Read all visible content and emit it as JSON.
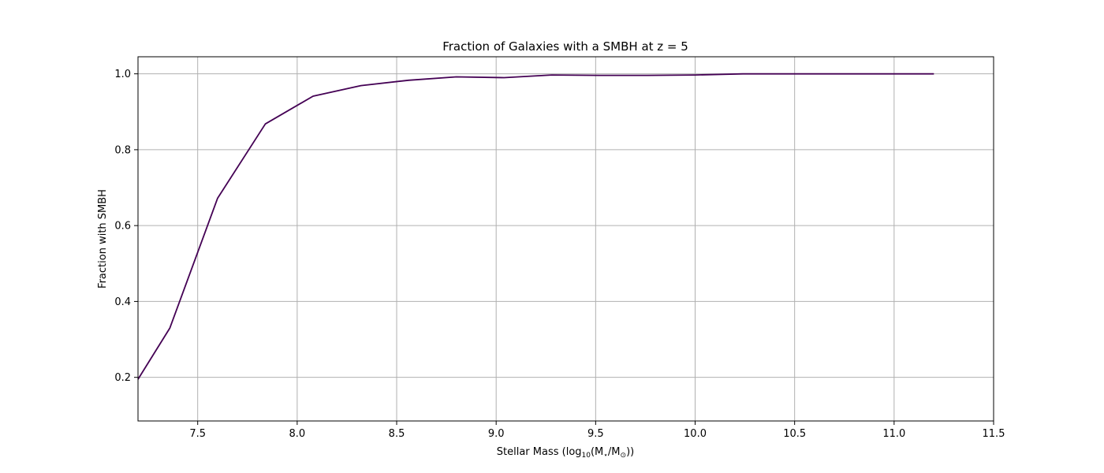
{
  "chart_data": {
    "type": "line",
    "title": "Fraction of Galaxies with a SMBH at z = 5",
    "xlabel": {
      "prefix": "Stellar Mass (log",
      "sub": "10",
      "mid": "(M",
      "star_sub": "⋆",
      "slash": "/M",
      "sun_sub": "⊙",
      "suffix": "))"
    },
    "ylabel": "Fraction with SMBH",
    "xlim": [
      7.2,
      11.5
    ],
    "ylim": [
      0.085,
      1.045
    ],
    "xticks": [
      "7.5",
      "8.0",
      "8.5",
      "9.0",
      "9.5",
      "10.0",
      "10.5",
      "11.0",
      "11.5"
    ],
    "yticks": [
      "0.2",
      "0.4",
      "0.6",
      "0.8",
      "1.0"
    ],
    "grid": true,
    "line_color": "#440154",
    "series": [
      {
        "x": [
          7.2,
          7.36,
          7.6,
          7.84,
          8.08,
          8.32,
          8.56,
          8.8,
          9.04,
          9.28,
          9.52,
          9.76,
          10.0,
          10.24,
          10.48,
          10.72,
          10.96,
          11.2
        ],
        "y": [
          0.195,
          0.33,
          0.672,
          0.868,
          0.941,
          0.969,
          0.983,
          0.992,
          0.99,
          0.997,
          0.996,
          0.996,
          0.997,
          1.0,
          1.0,
          1.0,
          1.0,
          1.0
        ]
      }
    ]
  }
}
